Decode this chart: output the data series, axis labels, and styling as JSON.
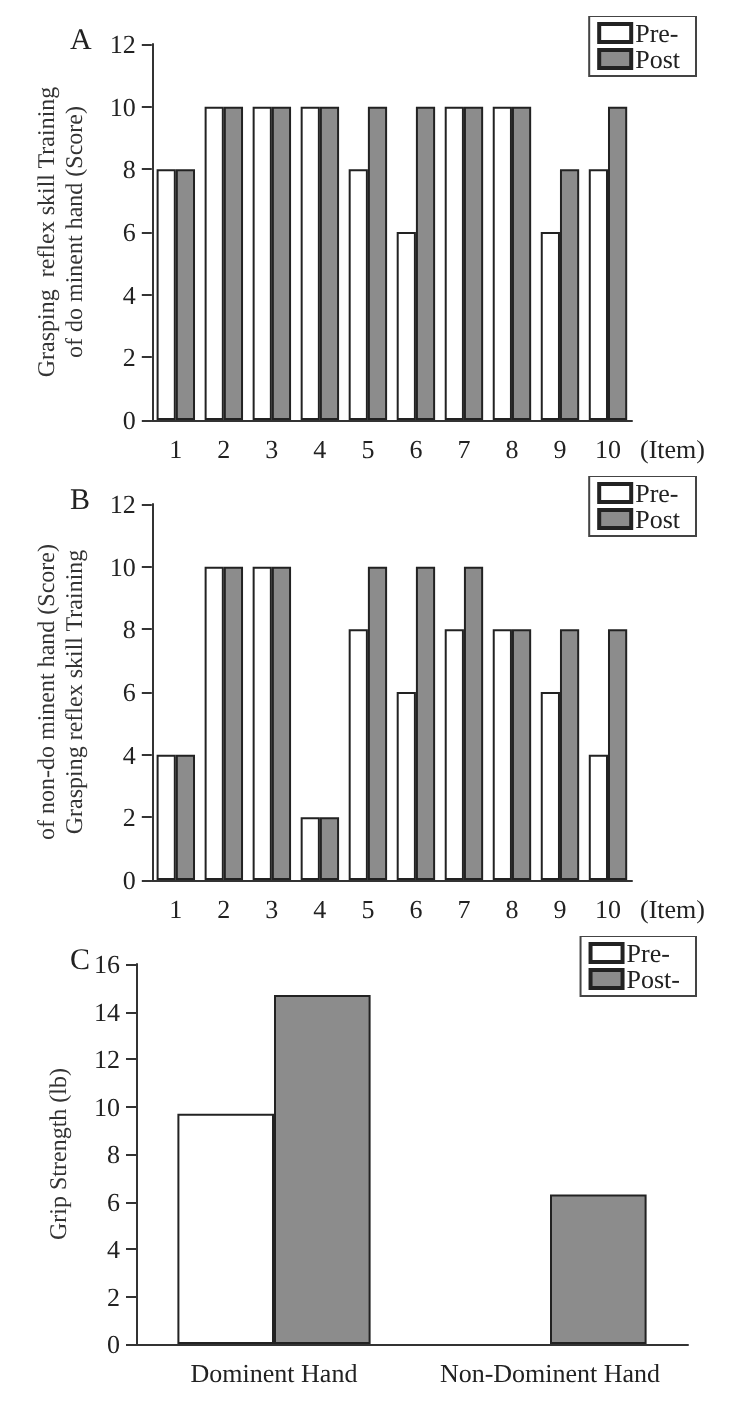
{
  "chart_data": [
    {
      "type": "bar",
      "title": "A",
      "ylabel": "Grasping  reflex skill Training\nof do minent hand (Score)",
      "xlabel": "(Item)",
      "categories": [
        "1",
        "2",
        "3",
        "4",
        "5",
        "6",
        "7",
        "8",
        "9",
        "10"
      ],
      "series": [
        {
          "name": "Pre-",
          "color": "#ffffff",
          "values": [
            8,
            10,
            10,
            10,
            8,
            6,
            10,
            10,
            6,
            8
          ]
        },
        {
          "name": "Post",
          "color": "#8c8c8c",
          "values": [
            8,
            10,
            10,
            10,
            10,
            10,
            10,
            10,
            8,
            10
          ]
        }
      ],
      "ylim": [
        0,
        12
      ],
      "yticks": [
        0,
        2,
        4,
        6,
        8,
        10,
        12
      ],
      "grid": false,
      "legend": "top right"
    },
    {
      "type": "bar",
      "title": "B",
      "ylabel": "of non-do minent hand (Score)\nGrasping reflex skill Training",
      "xlabel": "(Item)",
      "categories": [
        "1",
        "2",
        "3",
        "4",
        "5",
        "6",
        "7",
        "8",
        "9",
        "10"
      ],
      "series": [
        {
          "name": "Pre-",
          "color": "#ffffff",
          "values": [
            4,
            10,
            10,
            2,
            8,
            6,
            8,
            8,
            6,
            4
          ]
        },
        {
          "name": "Post",
          "color": "#8c8c8c",
          "values": [
            4,
            10,
            10,
            2,
            10,
            10,
            10,
            8,
            8,
            8
          ]
        }
      ],
      "ylim": [
        0,
        12
      ],
      "yticks": [
        0,
        2,
        4,
        6,
        8,
        10,
        12
      ],
      "grid": false,
      "legend": "top right"
    },
    {
      "type": "bar",
      "title": "C",
      "ylabel": "Grip Strength (lb)",
      "categories": [
        "Dominent Hand",
        "Non-Dominent Hand"
      ],
      "series": [
        {
          "name": "Pre-",
          "color": "#ffffff",
          "values": [
            9.7,
            null
          ]
        },
        {
          "name": "Post-",
          "color": "#8c8c8c",
          "values": [
            14.7,
            6.3
          ]
        }
      ],
      "ylim": [
        0,
        16
      ],
      "yticks": [
        0,
        2,
        4,
        6,
        8,
        10,
        12,
        14,
        16
      ],
      "grid": false,
      "legend": "top right"
    }
  ]
}
